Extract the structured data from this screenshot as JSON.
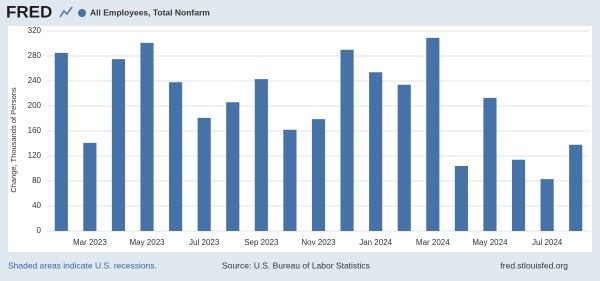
{
  "logo": "FRED",
  "chart_data": {
    "type": "bar",
    "y_label": "Change, Thousands of Persons",
    "categories": [
      null,
      "Mar 2023",
      null,
      "May 2023",
      null,
      "Jul 2023",
      null,
      "Sep 2023",
      null,
      "Nov 2023",
      null,
      "Jan 2024",
      null,
      "Mar 2024",
      null,
      "May 2024",
      null,
      "Jul 2024",
      null
    ],
    "series": [
      {
        "name": "All Employees, Total Nonfarm",
        "color": "#4572a7",
        "values": [
          285,
          141,
          275,
          301,
          238,
          181,
          206,
          243,
          162,
          179,
          290,
          254,
          234,
          309,
          104,
          213,
          114,
          83,
          138
        ]
      }
    ],
    "ylim": [
      0,
      320
    ],
    "yticks": [
      0,
      40,
      80,
      120,
      160,
      200,
      240,
      280,
      320
    ],
    "grid": true
  },
  "footer": {
    "left": "Shaded areas indicate U.S. recessions.",
    "center": "Source: U.S. Bureau of Labor Statistics",
    "right": "fred.stlouisfed.org"
  }
}
